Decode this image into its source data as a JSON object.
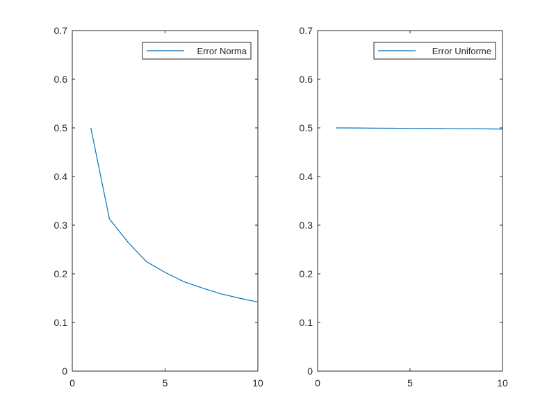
{
  "chart_data": [
    {
      "type": "line",
      "title": "",
      "xlabel": "",
      "ylabel": "",
      "xlim": [
        0,
        10
      ],
      "ylim": [
        0,
        0.7
      ],
      "xticks": [
        0,
        5,
        10
      ],
      "yticks": [
        0,
        0.1,
        0.2,
        0.3,
        0.4,
        0.5,
        0.6,
        0.7
      ],
      "xtick_labels": [
        "0",
        "5",
        "10"
      ],
      "ytick_labels": [
        "0",
        "0.1",
        "0.2",
        "0.3",
        "0.4",
        "0.5",
        "0.6",
        "0.7"
      ],
      "grid": false,
      "legend_position": "top-right",
      "series": [
        {
          "name": "Error Norma",
          "color": "#0072BD",
          "x": [
            1,
            2,
            3,
            4,
            5,
            6,
            7,
            8,
            9,
            10
          ],
          "y": [
            0.5,
            0.313,
            0.265,
            0.225,
            0.203,
            0.184,
            0.171,
            0.159,
            0.15,
            0.142
          ]
        }
      ]
    },
    {
      "type": "line",
      "title": "",
      "xlabel": "",
      "ylabel": "",
      "xlim": [
        0,
        10
      ],
      "ylim": [
        0,
        0.7
      ],
      "xticks": [
        0,
        5,
        10
      ],
      "yticks": [
        0,
        0.1,
        0.2,
        0.3,
        0.4,
        0.5,
        0.6,
        0.7
      ],
      "xtick_labels": [
        "0",
        "5",
        "10"
      ],
      "ytick_labels": [
        "0",
        "0.1",
        "0.2",
        "0.3",
        "0.4",
        "0.5",
        "0.6",
        "0.7"
      ],
      "grid": false,
      "legend_position": "top-right",
      "series": [
        {
          "name": "Error Uniforme",
          "color": "#0072BD",
          "x": [
            1,
            2,
            3,
            4,
            5,
            6,
            7,
            8,
            9,
            10
          ],
          "y": [
            0.5,
            0.4998,
            0.4995,
            0.4993,
            0.499,
            0.4988,
            0.4985,
            0.4983,
            0.498,
            0.4975
          ]
        }
      ]
    }
  ]
}
